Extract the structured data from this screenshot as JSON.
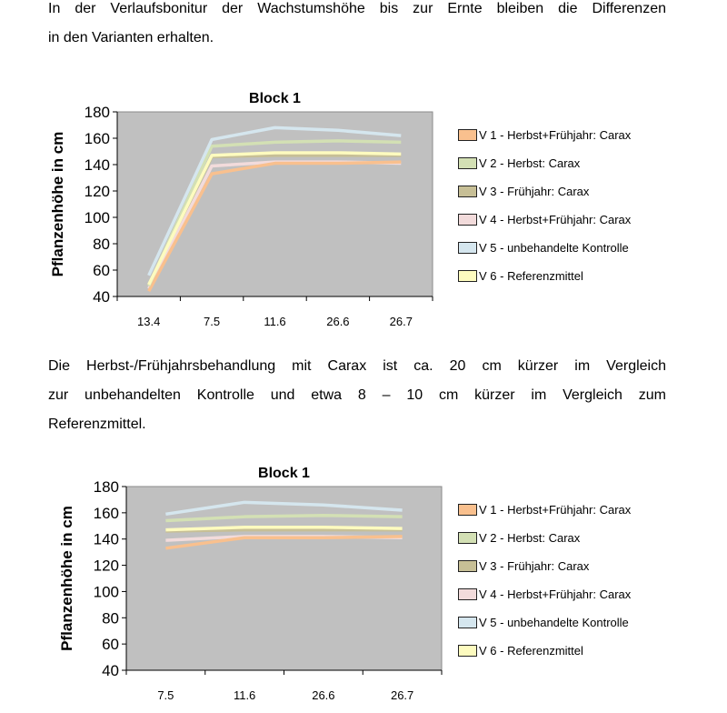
{
  "paragraphs": [
    {
      "lines": [
        "In der Verlaufsbonitur der Wachstumshöhe bis zur Ernte bleiben die Differenzen",
        "in den Varianten erhalten."
      ]
    },
    {
      "lines": [
        "Die Herbst-/Frühjahrsbehandlung mit Carax ist ca. 20 cm kürzer im Vergleich",
        "zur unbehandelten Kontrolle und etwa 8 – 10 cm kürzer im Vergleich zum",
        "Referenzmittel."
      ]
    }
  ],
  "legend": [
    {
      "label": "V 1 - Herbst+Frühjahr: Carax",
      "color": "#f9c08e"
    },
    {
      "label": "V 2 - Herbst: Carax",
      "color": "#d3e0b4"
    },
    {
      "label": "V 3 - Frühjahr: Carax",
      "color": "#c7bf96"
    },
    {
      "label": "V 4 - Herbst+Frühjahr: Carax",
      "color": "#f2dbdb"
    },
    {
      "label": "V 5 - unbehandelte Kontrolle",
      "color": "#d5e6ee"
    },
    {
      "label": "V 6 - Referenzmittel",
      "color": "#fdfbbf"
    }
  ],
  "chart_data": [
    {
      "type": "line",
      "title": "Block 1",
      "xlabel": "",
      "ylabel": "Pflanzenhöhe in cm",
      "ylim": [
        40,
        180
      ],
      "yticks": [
        40,
        60,
        80,
        100,
        120,
        140,
        160,
        180
      ],
      "categories": [
        "13.4",
        "7.5",
        "11.6",
        "26.6",
        "26.7"
      ],
      "grid": false,
      "legend_position": "right",
      "plot_background": "#c0c0c0",
      "series": [
        {
          "name": "V 1 - Herbst+Frühjahr: Carax",
          "values": [
            44,
            133,
            141,
            141,
            142
          ]
        },
        {
          "name": "V 2 - Herbst: Carax",
          "values": [
            48,
            154,
            157,
            158,
            157
          ]
        },
        {
          "name": "V 3 - Frühjahr: Carax",
          "values": [
            48,
            146,
            147,
            147,
            147
          ]
        },
        {
          "name": "V 4 - Herbst+Frühjahr: Carax",
          "values": [
            46,
            139,
            142,
            142,
            141
          ]
        },
        {
          "name": "V 5 - unbehandelte Kontrolle",
          "values": [
            56,
            159,
            168,
            166,
            162
          ]
        },
        {
          "name": "V 6 - Referenzmittel",
          "values": [
            49,
            147,
            149,
            149,
            148
          ]
        }
      ]
    },
    {
      "type": "line",
      "title": "Block 1",
      "xlabel": "",
      "ylabel": "Pflanzenhöhe in cm",
      "ylim": [
        40,
        180
      ],
      "yticks": [
        40,
        60,
        80,
        100,
        120,
        140,
        160,
        180
      ],
      "categories": [
        "7.5",
        "11.6",
        "26.6",
        "26.7"
      ],
      "grid": false,
      "legend_position": "right",
      "plot_background": "#c0c0c0",
      "series": [
        {
          "name": "V 1 - Herbst+Frühjahr: Carax",
          "values": [
            133,
            141,
            141,
            142
          ]
        },
        {
          "name": "V 2 - Herbst: Carax",
          "values": [
            154,
            157,
            158,
            157
          ]
        },
        {
          "name": "V 3 - Frühjahr: Carax",
          "values": [
            146,
            147,
            147,
            147
          ]
        },
        {
          "name": "V 4 - Herbst+Frühjahr: Carax",
          "values": [
            139,
            142,
            142,
            141
          ]
        },
        {
          "name": "V 5 - unbehandelte Kontrolle",
          "values": [
            159,
            168,
            166,
            162
          ]
        },
        {
          "name": "V 6 - Referenzmittel",
          "values": [
            147,
            149,
            149,
            148
          ]
        }
      ]
    }
  ]
}
